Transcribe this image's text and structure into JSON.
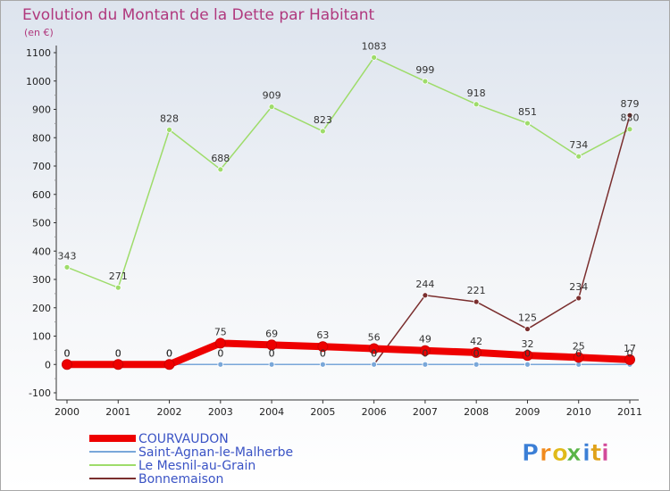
{
  "chart_data": {
    "type": "line",
    "title": "Evolution du Montant de la Dette par Habitant",
    "subtitle": "(en €)",
    "categories": [
      "2000",
      "2001",
      "2002",
      "2003",
      "2004",
      "2005",
      "2006",
      "2007",
      "2008",
      "2009",
      "2010",
      "2011"
    ],
    "ylim": [
      -100,
      1100
    ],
    "yticks": [
      -100,
      0,
      100,
      200,
      300,
      400,
      500,
      600,
      700,
      800,
      900,
      1000,
      1100
    ],
    "grid": false,
    "legend_position": "bottom-left",
    "series": [
      {
        "name": "COURVAUDON",
        "color": "#ee0000",
        "values": [
          0,
          0,
          0,
          75,
          69,
          63,
          56,
          49,
          42,
          32,
          25,
          17
        ]
      },
      {
        "name": "Saint-Agnan-le-Malherbe",
        "color": "#79a7d9",
        "values": [
          0,
          0,
          0,
          0,
          0,
          0,
          0,
          0,
          0,
          0,
          0,
          0
        ]
      },
      {
        "name": "Le Mesnil-au-Grain",
        "color": "#9edc6a",
        "values": [
          343,
          271,
          828,
          688,
          909,
          823,
          1083,
          999,
          918,
          851,
          734,
          830
        ]
      },
      {
        "name": "Bonnemaison",
        "color": "#7a2e2e",
        "values": [
          0,
          0,
          0,
          0,
          0,
          0,
          0,
          244,
          221,
          125,
          234,
          879
        ]
      }
    ]
  },
  "brand": {
    "letters": [
      "P",
      "r",
      "o",
      "x",
      "i",
      "t",
      "i"
    ],
    "colors": [
      "#3b7fd6",
      "#f08a1c",
      "#e0ba1a",
      "#59b548",
      "#3b7fd6",
      "#e0a21a",
      "#d24a9a"
    ]
  }
}
